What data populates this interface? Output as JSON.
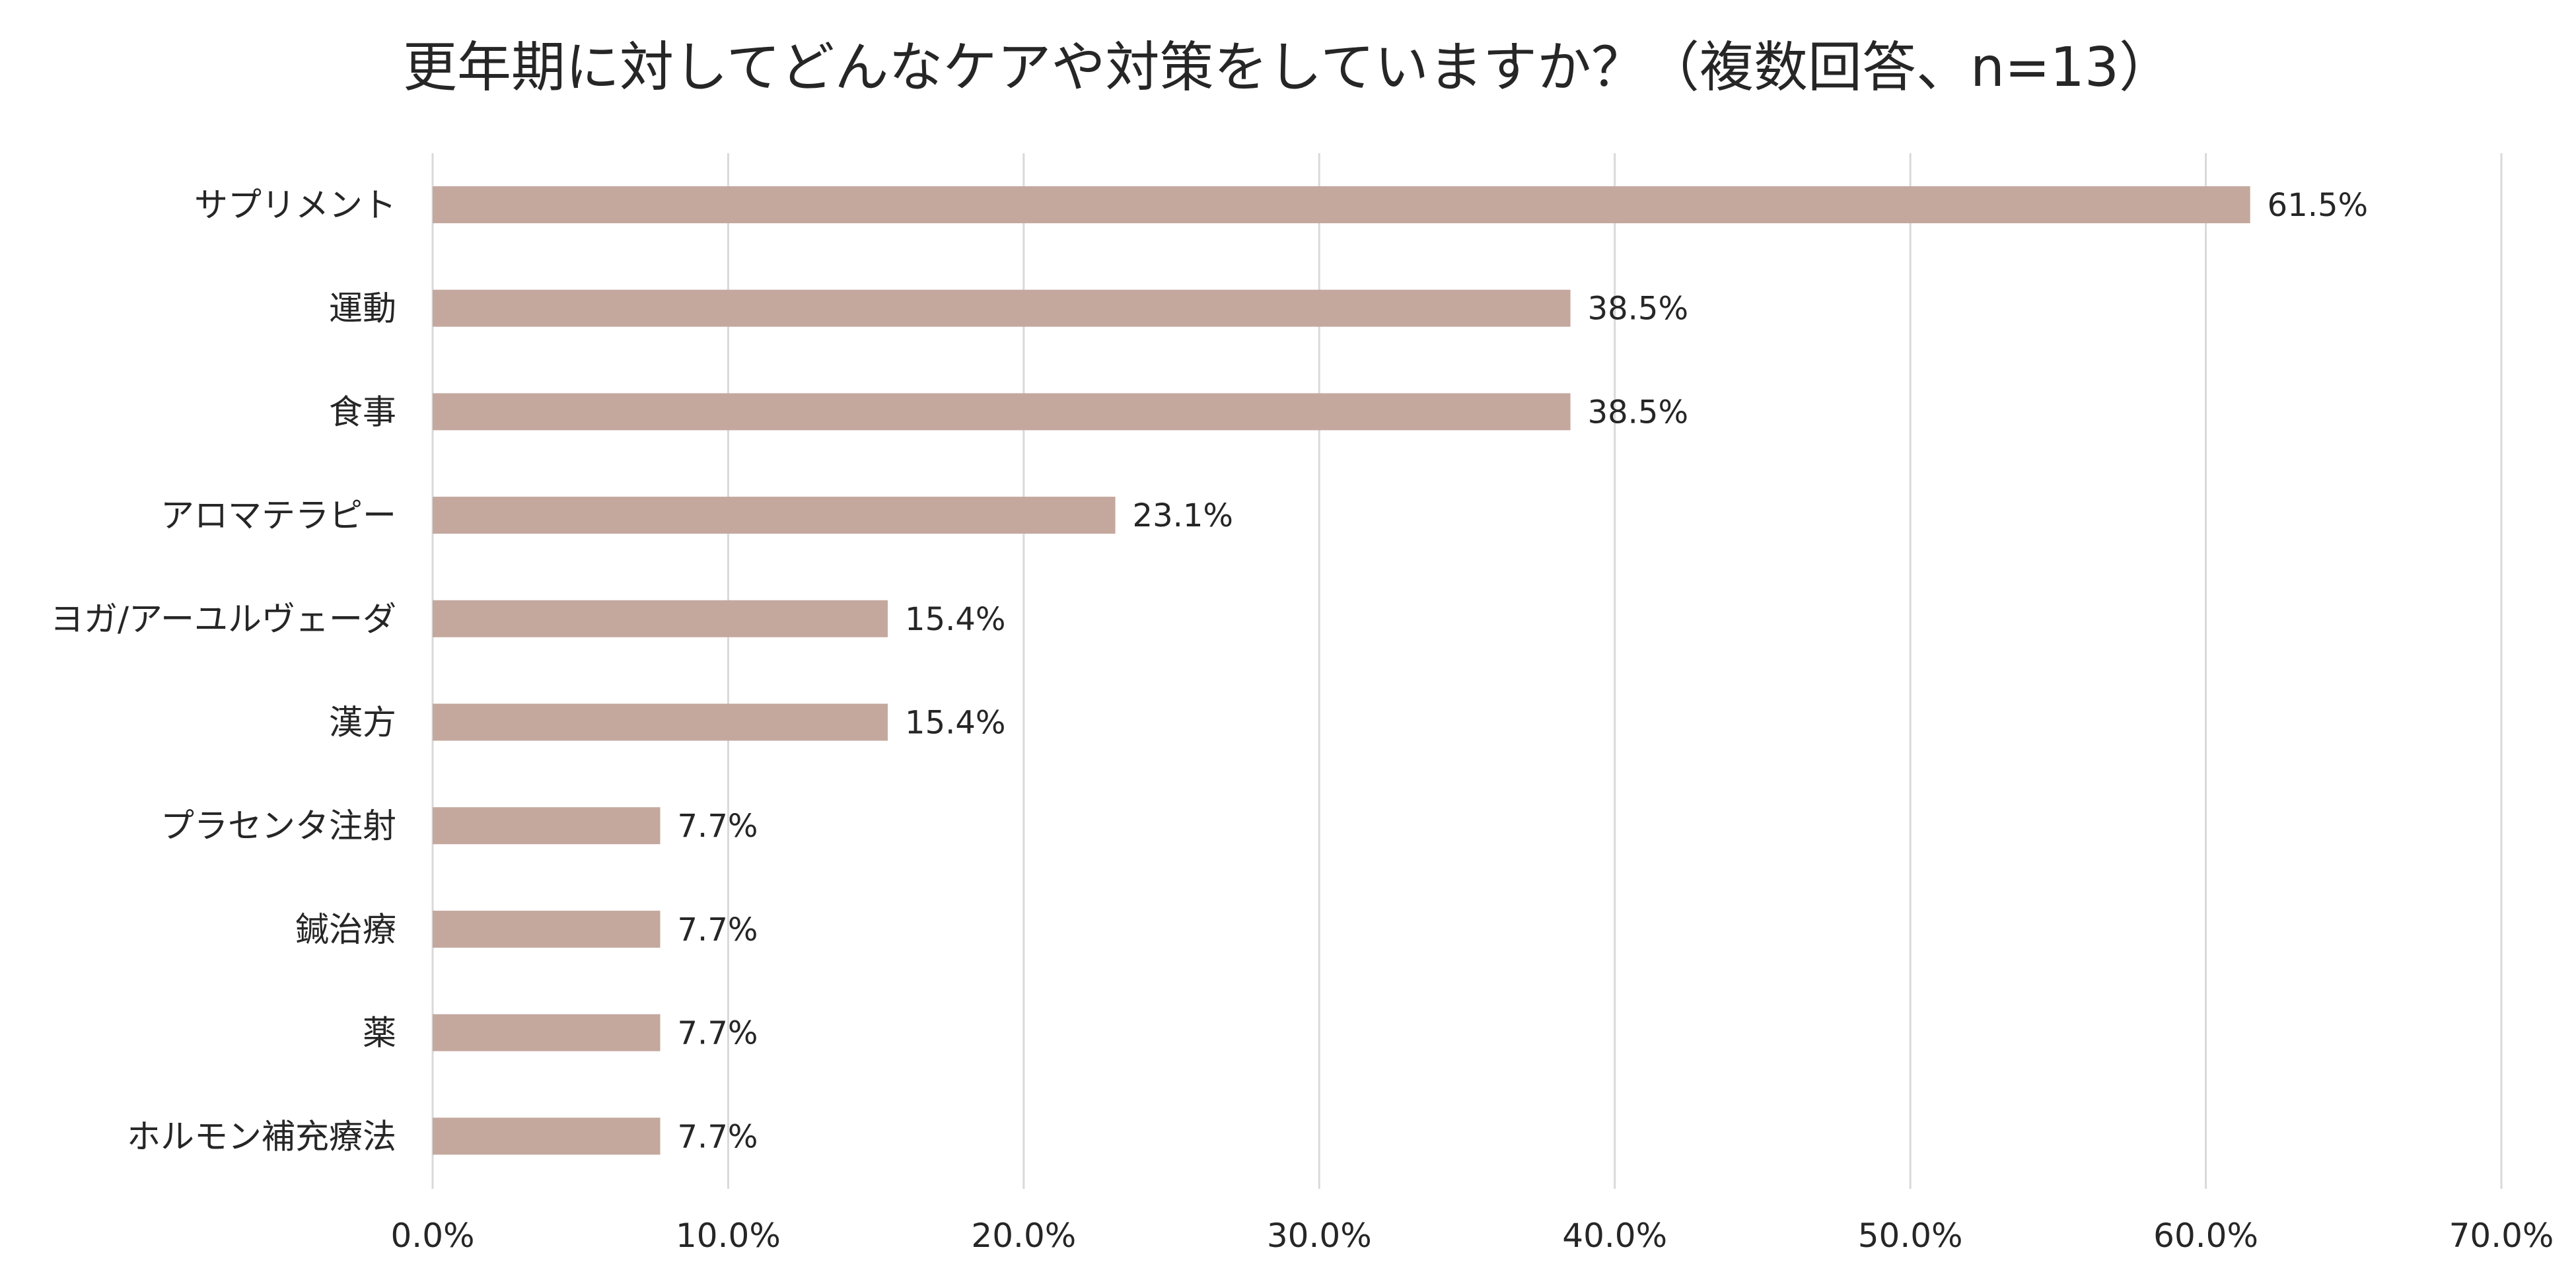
{
  "chart_data": {
    "type": "bar",
    "orientation": "horizontal",
    "title": "更年期に対してどんなケアや対策をしていますか？（複数回答、n=13）",
    "categories": [
      "サプリメント",
      "運動",
      "食事",
      "アロマテラピー",
      "ヨガ/アーユルヴェーダ",
      "漢方",
      "プラセンタ注射",
      "鍼治療",
      "薬",
      "ホルモン補充療法"
    ],
    "values": [
      61.5,
      38.5,
      38.5,
      23.1,
      15.4,
      15.4,
      7.7,
      7.7,
      7.7,
      7.7
    ],
    "value_labels": [
      "61.5%",
      "38.5%",
      "38.5%",
      "23.1%",
      "15.4%",
      "15.4%",
      "7.7%",
      "7.7%",
      "7.7%",
      "7.7%"
    ],
    "xlim": [
      0,
      70
    ],
    "xticks": [
      0,
      10,
      20,
      30,
      40,
      50,
      60,
      70
    ],
    "xtick_labels": [
      "0.0%",
      "10.0%",
      "20.0%",
      "30.0%",
      "40.0%",
      "50.0%",
      "60.0%",
      "70.0%"
    ],
    "xlabel": "",
    "ylabel": "",
    "grid": "vertical",
    "legend": "none",
    "bar_color": "#c4a89e",
    "grid_color": "#d9d9d9",
    "text_color": "#262626"
  }
}
